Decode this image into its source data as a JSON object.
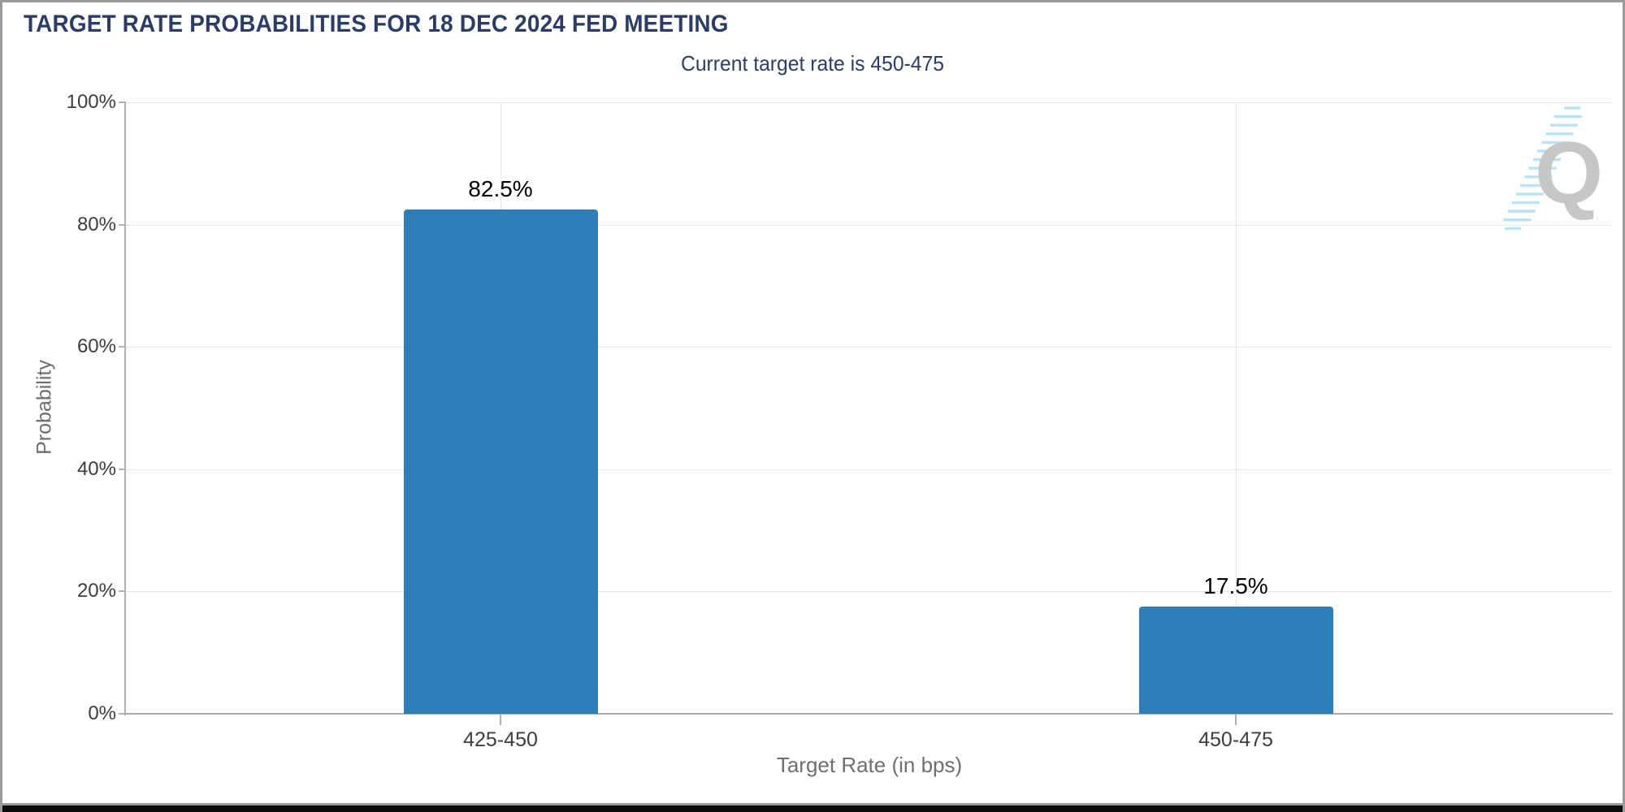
{
  "header": {
    "title": "TARGET RATE PROBABILITIES FOR 18 DEC 2024 FED MEETING",
    "subtitle": "Current target rate is 450-475"
  },
  "watermark": {
    "letter": "Q",
    "stripe_color": "#b9e3f8",
    "letter_color": "#c7c7c7"
  },
  "chart_data": {
    "type": "bar",
    "title": "TARGET RATE PROBABILITIES FOR 18 DEC 2024 FED MEETING",
    "subtitle": "Current target rate is 450-475",
    "categories": [
      "425-450",
      "450-475"
    ],
    "values": [
      82.5,
      17.5
    ],
    "value_labels": [
      "82.5%",
      "17.5%"
    ],
    "xlabel": "Target Rate (in bps)",
    "ylabel": "Probability",
    "ylim": [
      0,
      100
    ],
    "yticks": [
      0,
      20,
      40,
      60,
      80,
      100
    ],
    "ytick_labels": [
      "0%",
      "20%",
      "40%",
      "60%",
      "80%",
      "100%"
    ],
    "grid": true,
    "legend": false,
    "bar_color": "#2c7fb8"
  },
  "colors": {
    "title_navy": "#2b3d66",
    "axis_text": "#3d3d3d",
    "axis_title_gray": "#6f6f6f",
    "gridline": "#e7e7e7",
    "axis_line": "#b0b0b0",
    "frame_border": "#9a9a9a",
    "frame_bottom": "#0b0b0b",
    "background": "#ffffff"
  }
}
